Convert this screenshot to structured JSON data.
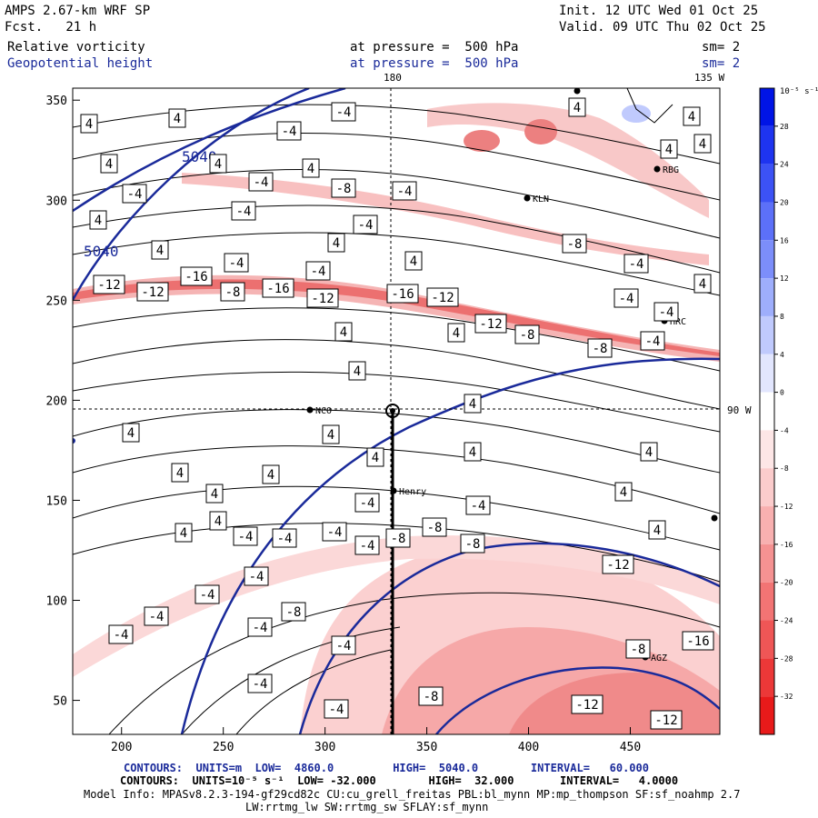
{
  "header": {
    "model": "AMPS 2.67-km WRF SP",
    "fcst": "Fcst.   21 h",
    "init": "Init. 12 UTC Wed 01 Oct 25",
    "valid": "Valid. 09 UTC Thu 02 Oct 25",
    "field1": "Relative vorticity",
    "field2": "Geopotential height",
    "level1": "at pressure =  500 hPa",
    "level2": "at pressure =  500 hPa",
    "sm1": "sm= 2",
    "sm2": "sm= 2"
  },
  "map": {
    "lon_top_180": "180",
    "lon_top_135w": "135 W",
    "lon_right_90w": "90 W",
    "stations": [
      "RBG",
      "KLN",
      "HRC",
      "NCO",
      "Henry",
      "AGZ"
    ],
    "height_labels": [
      "5040",
      "5040"
    ],
    "vorticity_labels": [
      "4",
      "4",
      "-4",
      "-4",
      "4",
      "-8",
      "-4",
      "4",
      "-16",
      "-12",
      "-12",
      "-8",
      "-16",
      "-12",
      "-16",
      "-12",
      "-12",
      "-8",
      "-8",
      "4",
      "-4",
      "-8",
      "-12",
      "-8",
      "-16",
      "-12",
      "-4",
      "-4",
      "4",
      "4",
      "-4"
    ]
  },
  "chart_data": {
    "type": "heatmap",
    "x_ticks": [
      200,
      250,
      300,
      350,
      400,
      450
    ],
    "y_ticks": [
      50,
      100,
      150,
      200,
      250,
      300,
      350
    ],
    "xlim": [
      176,
      494
    ],
    "ylim": [
      33,
      356
    ],
    "colorbar": {
      "unit_label": "10⁻⁵ s⁻¹",
      "levels": [
        32,
        28,
        24,
        20,
        16,
        12,
        8,
        4,
        0,
        -4,
        -8,
        -12,
        -16,
        -20,
        -24,
        -28,
        -32
      ],
      "colors": [
        "#0014e6",
        "#1e34f0",
        "#3c52f5",
        "#5c70f8",
        "#7c8efa",
        "#9eaefc",
        "#c0cafd",
        "#e2e6fe",
        "#ffffff",
        "#fde6e6",
        "#fbcccc",
        "#f8b0b0",
        "#f59292",
        "#f27474",
        "#ef5656",
        "#ec3838",
        "#e81a1a"
      ]
    }
  },
  "footer": {
    "line1": "CONTOURS:  UNITS=m  LOW=  4860.0         HIGH=  5040.0        INTERVAL=   60.000",
    "line2": "CONTOURS:  UNITS=10⁻⁵ s⁻¹  LOW= -32.000        HIGH=  32.000       INTERVAL=   4.0000",
    "line3": "Model Info: MPASv8.2.3-194-gf29cd82c CU:cu_grell_freitas PBL:bl_mynn MP:mp_thompson SF:sf_noahmp 2.7",
    "line4": "LW:rrtmg_lw SW:rrtmg_sw SFLAY:sf_mynn"
  }
}
